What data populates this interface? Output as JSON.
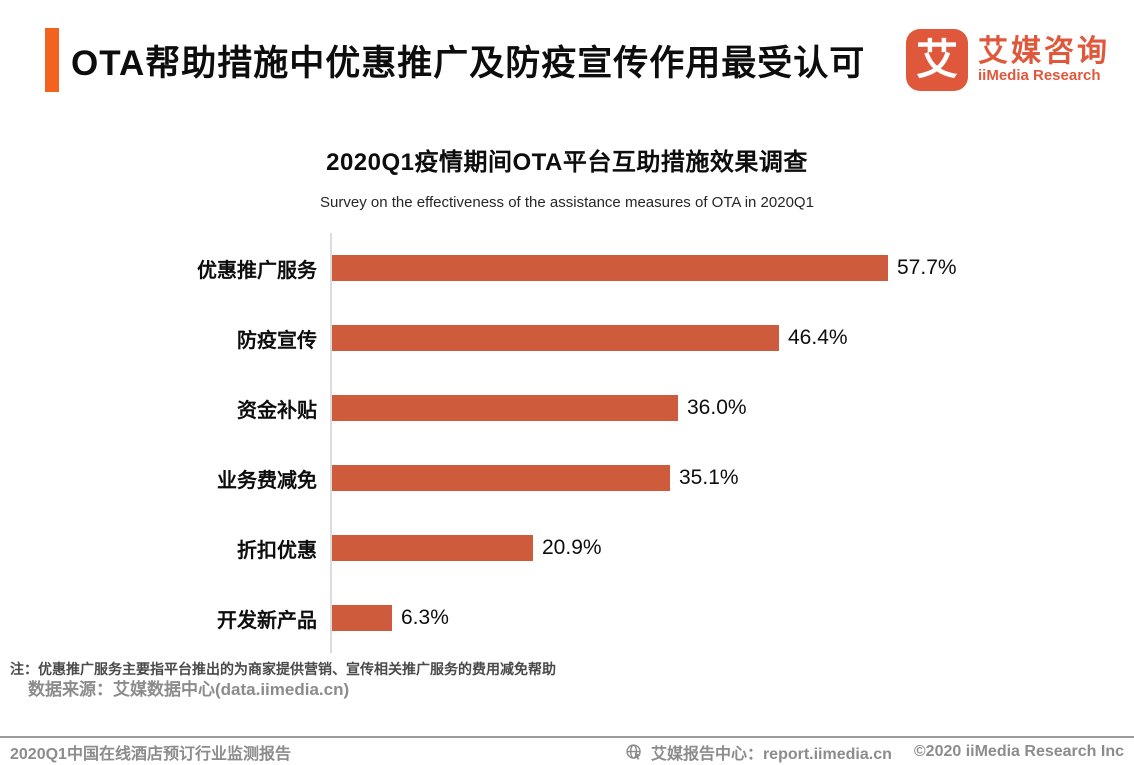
{
  "header": {
    "title": "OTA帮助措施中优惠推广及防疫宣传作用最受认可",
    "logo": {
      "icon_char": "艾",
      "name_cn": "艾媒咨询",
      "name_en": "iiMedia Research"
    }
  },
  "chart_data": {
    "type": "bar",
    "orientation": "horizontal",
    "title": "2020Q1疫情期间OTA平台互助措施效果调查",
    "subtitle": "Survey on the effectiveness of the assistance measures of OTA in 2020Q1",
    "categories": [
      "优惠推广服务",
      "防疫宣传",
      "资金补贴",
      "业务费减免",
      "折扣优惠",
      "开发新产品"
    ],
    "values": [
      57.7,
      46.4,
      36.0,
      35.1,
      20.9,
      6.3
    ],
    "unit": "%",
    "value_labels": [
      "57.7%",
      "46.4%",
      "36.0%",
      "35.1%",
      "20.9%",
      "6.3%"
    ],
    "xlim": [
      0,
      60
    ],
    "grid": "off",
    "legend": "none",
    "bar_color": "#CD5B3C"
  },
  "notes": {
    "note": "注：优惠推广服务主要指平台推出的为商家提供营销、宣传相关推广服务的费用减免帮助",
    "source": "数据来源：艾媒数据中心(data.iimedia.cn)"
  },
  "footer": {
    "left": "2020Q1中国在线酒店预订行业监测报告",
    "right_site": "艾媒报告中心：report.iimedia.cn",
    "right_copyright": "©2020  iiMedia Research  Inc",
    "globe_icon": "globe-cursor"
  },
  "colors": {
    "accent_bar": "#F4621F",
    "bar": "#CD5B3C",
    "logo_orange": "#E0583C",
    "axis_line": "#DCDCDC",
    "gray_text": "#8C8C8C",
    "note_text": "#4A4A4A"
  }
}
